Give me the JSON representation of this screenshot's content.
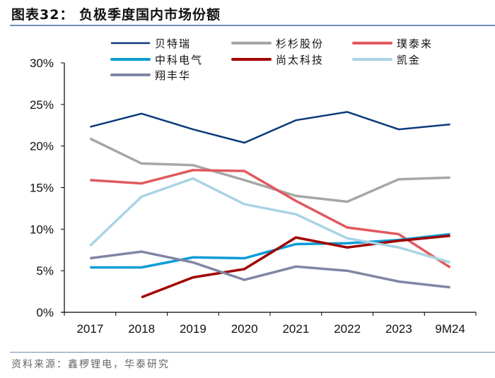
{
  "header": {
    "title": "图表32： 负极季度国内市场份额"
  },
  "footer": {
    "source": "资料来源：鑫椤锂电，华泰研究"
  },
  "chart_data": {
    "type": "line",
    "title": "负极季度国内市场份额",
    "xlabel": "",
    "ylabel": "",
    "categories": [
      "2017",
      "2018",
      "2019",
      "2020",
      "2021",
      "2022",
      "2023",
      "9M24"
    ],
    "ylim": [
      0,
      30
    ],
    "yticks": [
      0,
      5,
      10,
      15,
      20,
      25,
      30
    ],
    "ytick_labels": [
      "0%",
      "5%",
      "10%",
      "15%",
      "20%",
      "25%",
      "30%"
    ],
    "grid": false,
    "legend_position": "top",
    "series": [
      {
        "name": "贝特瑞",
        "color": "#0a3a7a",
        "values": [
          22.3,
          23.9,
          22.0,
          20.4,
          23.1,
          24.1,
          22.0,
          22.6
        ]
      },
      {
        "name": "杉杉股份",
        "color": "#a6a6a6",
        "values": [
          20.9,
          17.9,
          17.7,
          15.9,
          14.0,
          13.3,
          16.0,
          16.2
        ]
      },
      {
        "name": "璞泰来",
        "color": "#e05a5e",
        "values": [
          15.9,
          15.5,
          17.1,
          17.0,
          13.4,
          10.2,
          9.4,
          5.4
        ]
      },
      {
        "name": "中科电气",
        "color": "#0a9bd6",
        "values": [
          5.4,
          5.4,
          6.6,
          6.5,
          8.2,
          8.3,
          8.7,
          9.4
        ]
      },
      {
        "name": "尚太科技",
        "color": "#a00000",
        "values": [
          null,
          1.8,
          4.2,
          5.2,
          9.0,
          7.8,
          8.6,
          9.2
        ]
      },
      {
        "name": "凯金",
        "color": "#a8d4e4",
        "values": [
          8.0,
          13.9,
          16.1,
          13.0,
          11.8,
          8.9,
          7.8,
          6.0
        ]
      },
      {
        "name": "翔丰华",
        "color": "#7f86a4",
        "values": [
          6.5,
          7.3,
          6.0,
          3.9,
          5.5,
          5.0,
          3.7,
          3.0
        ]
      }
    ]
  }
}
